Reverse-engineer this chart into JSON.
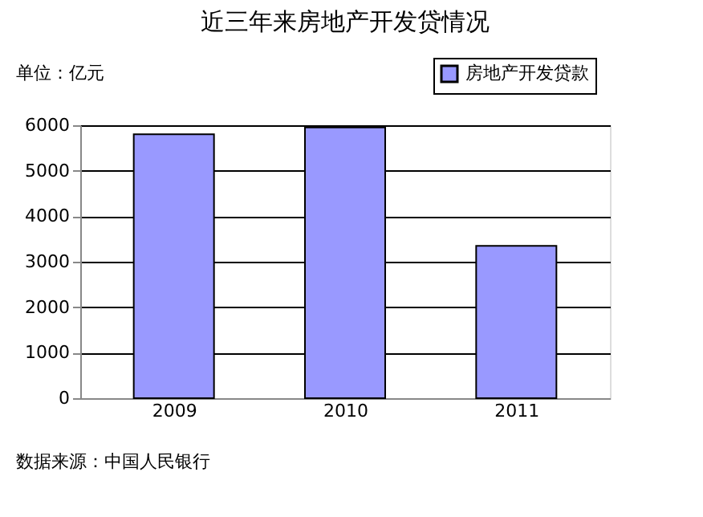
{
  "chart_data": {
    "type": "bar",
    "title": "近三年来房地产开发贷情况",
    "categories": [
      "2009",
      "2010",
      "2011"
    ],
    "series": [
      {
        "name": "房地产开发贷款",
        "color": "#9999ff",
        "values": [
          5800,
          5950,
          3350
        ]
      }
    ],
    "ylim": [
      0,
      6000
    ],
    "yticks": [
      0,
      1000,
      2000,
      3000,
      4000,
      5000,
      6000
    ],
    "grid": "y",
    "legend": "top right",
    "annotations": [
      "单位：亿元",
      "数据来源：中国人民银行"
    ]
  }
}
